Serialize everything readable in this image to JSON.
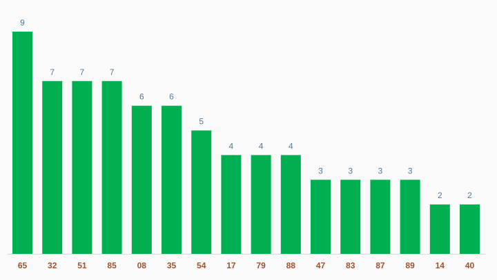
{
  "colors": {
    "bar": "#00b050",
    "value_label": "#5a7890",
    "category_label": "#a0522d",
    "baseline": "#d9d9d9",
    "background": "#fafafa"
  },
  "chart_data": {
    "type": "bar",
    "title": "",
    "xlabel": "",
    "ylabel": "",
    "grid": false,
    "legend": false,
    "ylim": [
      0,
      9
    ],
    "categories": [
      "65",
      "32",
      "51",
      "85",
      "08",
      "35",
      "54",
      "17",
      "79",
      "88",
      "47",
      "83",
      "87",
      "89",
      "14",
      "40"
    ],
    "values": [
      9,
      7,
      7,
      7,
      6,
      6,
      5,
      4,
      4,
      4,
      3,
      3,
      3,
      3,
      2,
      2
    ]
  }
}
